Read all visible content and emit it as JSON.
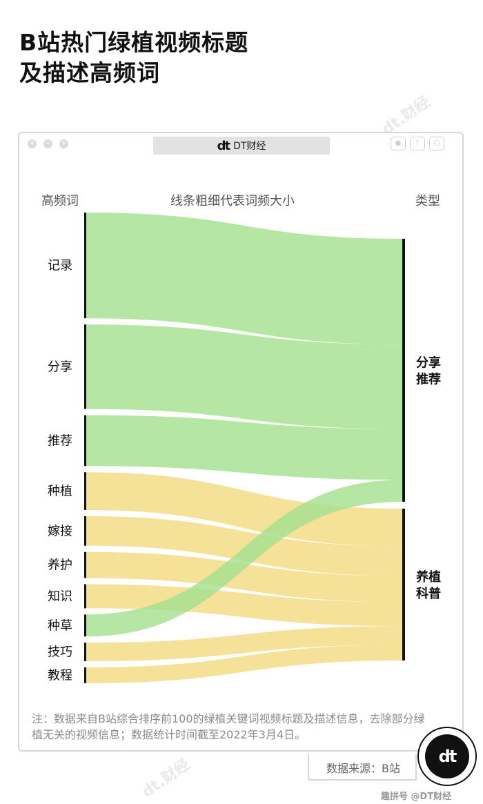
{
  "title_lines": [
    "B站热门绿植视频标题",
    "及描述高频词"
  ],
  "window": {
    "tab_label": "DT财经",
    "logo_mark": "dt"
  },
  "chart_data": {
    "type": "sankey",
    "left_header": "高频词",
    "center_header": "线条粗细代表词频大小",
    "right_header": "类型",
    "targets": [
      {
        "name": "分享推荐",
        "lines": [
          "分享",
          "推荐"
        ],
        "color": "#a5e190"
      },
      {
        "name": "养植科普",
        "lines": [
          "养植",
          "科普"
        ],
        "color": "#f3dc86"
      }
    ],
    "flows": [
      {
        "source": "记录",
        "target": "分享推荐",
        "value": 154
      },
      {
        "source": "分享",
        "target": "分享推荐",
        "value": 123
      },
      {
        "source": "推荐",
        "target": "分享推荐",
        "value": 74
      },
      {
        "source": "种植",
        "target": "养植科普",
        "value": 55
      },
      {
        "source": "嫁接",
        "target": "养植科普",
        "value": 43
      },
      {
        "source": "养护",
        "target": "养植科普",
        "value": 38
      },
      {
        "source": "知识",
        "target": "养植科普",
        "value": 35
      },
      {
        "source": "种草",
        "target": "分享推荐",
        "value": 32
      },
      {
        "source": "技巧",
        "target": "养植科普",
        "value": 27
      },
      {
        "source": "教程",
        "target": "养植科普",
        "value": 23
      }
    ]
  },
  "note": "注：数据来自B站综合排序前100的绿植关键词视频标题及描述信息，去除部分绿植无关的视频信息；数据统计时间截至2022年3月4日。",
  "source": "数据来源：B站",
  "badge": {
    "logo_mark": "dt"
  },
  "footer": "趣拼号 @DT财经"
}
